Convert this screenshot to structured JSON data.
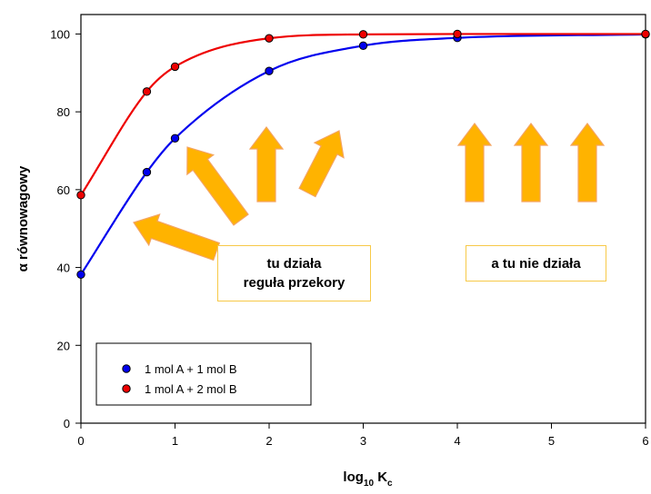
{
  "chart_data": {
    "type": "line",
    "title": "",
    "xlabel": "log",
    "xlabel_subscript": "10",
    "xlabel_main": " K",
    "xlabel_main_subscript": "c",
    "ylabel": "α równowagowy",
    "xlim": [
      0,
      6
    ],
    "ylim": [
      0,
      105
    ],
    "x_ticks": [
      "0",
      "1",
      "2",
      "3",
      "4",
      "5",
      "6"
    ],
    "y_ticks": [
      "0",
      "20",
      "40",
      "60",
      "80",
      "100"
    ],
    "grid": false,
    "legend_position": "bottom-left",
    "series": [
      {
        "name": "1 mol A + 1 mol B",
        "color": "#0000ee",
        "x": [
          0,
          0.7,
          1,
          2,
          3,
          4,
          6
        ],
        "y": [
          38.2,
          64.5,
          73.2,
          90.5,
          97.0,
          99.0,
          99.9
        ]
      },
      {
        "name": "1 mol A + 2 mol B",
        "color": "#ee0000",
        "x": [
          0,
          0.7,
          1,
          2,
          3,
          4,
          6
        ],
        "y": [
          58.6,
          85.2,
          91.6,
          98.9,
          99.9,
          100.0,
          100.0
        ]
      }
    ],
    "annotations": [
      {
        "lines": [
          "tu działa",
          "reguła przekory"
        ]
      },
      {
        "lines": [
          "a tu nie działa"
        ]
      }
    ]
  },
  "colors": {
    "arrow_fill": "#ffb300",
    "arrow_stroke": "#f4a460",
    "box_border": "#f7c948"
  }
}
